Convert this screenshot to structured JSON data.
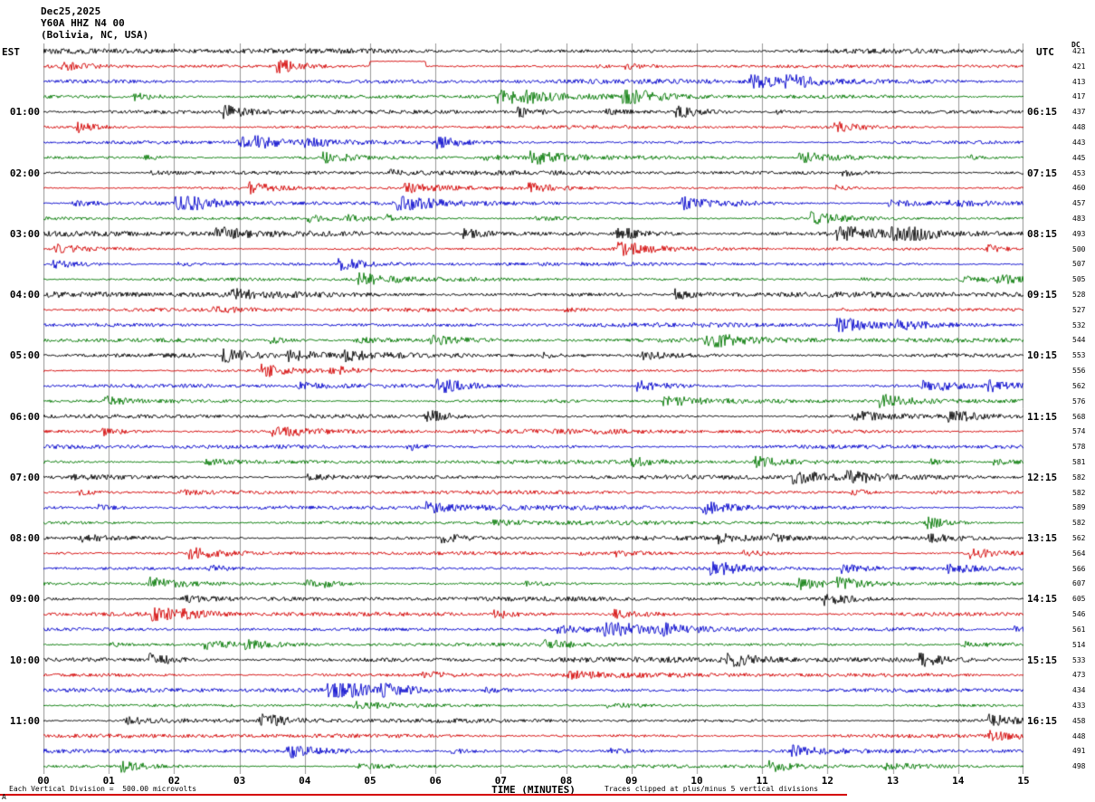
{
  "header": {
    "date": "Dec25,2025",
    "station": "Y60A HHZ N4 00",
    "location": "(Bolivia, NC, USA)"
  },
  "axes": {
    "left_label": "EST",
    "right_label": "UTC",
    "dc_label": "DC",
    "x_title": "TIME (MINUTES)",
    "x_ticks": [
      "00",
      "01",
      "02",
      "03",
      "04",
      "05",
      "06",
      "07",
      "08",
      "09",
      "10",
      "11",
      "12",
      "13",
      "14",
      "15"
    ]
  },
  "footer": {
    "scale_note": "Each Vertical Division =  500.00 microvolts",
    "clip_note": "Traces clipped at plus/minus 5 vertical divisions",
    "corner_mark": "A"
  },
  "chart_data": {
    "type": "seismogram-helicorder",
    "title": "Y60A HHZ N4 00 (Bolivia, NC, USA) Dec25,2025",
    "x_label": "TIME (MINUTES)",
    "x_minutes_range": [
      0,
      15
    ],
    "minutes_per_line": 15,
    "vertical_division_microvolts": 500.0,
    "clip_divisions": 5,
    "trace_colors_cycle": [
      "#000000",
      "#d40000",
      "#0000cc",
      "#007700"
    ],
    "grid": "vertical lines every 1 minute",
    "notable_event": {
      "row": 1,
      "start_minute": 5.0,
      "end_minute": 5.85,
      "description": "flat-topped upward offset pulse on red trace"
    },
    "rows": [
      {
        "est": "",
        "utc": "",
        "dc": 421
      },
      {
        "est": "",
        "utc": "",
        "dc": 421
      },
      {
        "est": "",
        "utc": "",
        "dc": 413
      },
      {
        "est": "",
        "utc": "",
        "dc": 417
      },
      {
        "est": "01:00",
        "utc": "06:15",
        "dc": 437
      },
      {
        "est": "",
        "utc": "",
        "dc": 448
      },
      {
        "est": "",
        "utc": "",
        "dc": 443
      },
      {
        "est": "",
        "utc": "",
        "dc": 445
      },
      {
        "est": "02:00",
        "utc": "07:15",
        "dc": 453
      },
      {
        "est": "",
        "utc": "",
        "dc": 460
      },
      {
        "est": "",
        "utc": "",
        "dc": 457
      },
      {
        "est": "",
        "utc": "",
        "dc": 483
      },
      {
        "est": "03:00",
        "utc": "08:15",
        "dc": 493
      },
      {
        "est": "",
        "utc": "",
        "dc": 500
      },
      {
        "est": "",
        "utc": "",
        "dc": 507
      },
      {
        "est": "",
        "utc": "",
        "dc": 505
      },
      {
        "est": "04:00",
        "utc": "09:15",
        "dc": 528
      },
      {
        "est": "",
        "utc": "",
        "dc": 527
      },
      {
        "est": "",
        "utc": "",
        "dc": 532
      },
      {
        "est": "",
        "utc": "",
        "dc": 544
      },
      {
        "est": "05:00",
        "utc": "10:15",
        "dc": 553
      },
      {
        "est": "",
        "utc": "",
        "dc": 556
      },
      {
        "est": "",
        "utc": "",
        "dc": 562
      },
      {
        "est": "",
        "utc": "",
        "dc": 576
      },
      {
        "est": "06:00",
        "utc": "11:15",
        "dc": 568
      },
      {
        "est": "",
        "utc": "",
        "dc": 574
      },
      {
        "est": "",
        "utc": "",
        "dc": 578
      },
      {
        "est": "",
        "utc": "",
        "dc": 581
      },
      {
        "est": "07:00",
        "utc": "12:15",
        "dc": 582
      },
      {
        "est": "",
        "utc": "",
        "dc": 582
      },
      {
        "est": "",
        "utc": "",
        "dc": 589
      },
      {
        "est": "",
        "utc": "",
        "dc": 582
      },
      {
        "est": "08:00",
        "utc": "13:15",
        "dc": 562
      },
      {
        "est": "",
        "utc": "",
        "dc": 564
      },
      {
        "est": "",
        "utc": "",
        "dc": 566
      },
      {
        "est": "",
        "utc": "",
        "dc": 607
      },
      {
        "est": "09:00",
        "utc": "14:15",
        "dc": 605
      },
      {
        "est": "",
        "utc": "",
        "dc": 546
      },
      {
        "est": "",
        "utc": "",
        "dc": 561
      },
      {
        "est": "",
        "utc": "",
        "dc": 514
      },
      {
        "est": "10:00",
        "utc": "15:15",
        "dc": 533
      },
      {
        "est": "",
        "utc": "",
        "dc": 473
      },
      {
        "est": "",
        "utc": "",
        "dc": 434
      },
      {
        "est": "",
        "utc": "",
        "dc": 433
      },
      {
        "est": "11:00",
        "utc": "16:15",
        "dc": 458
      },
      {
        "est": "",
        "utc": "",
        "dc": 448
      },
      {
        "est": "",
        "utc": "",
        "dc": 491
      },
      {
        "est": "",
        "utc": "",
        "dc": 498
      }
    ]
  }
}
